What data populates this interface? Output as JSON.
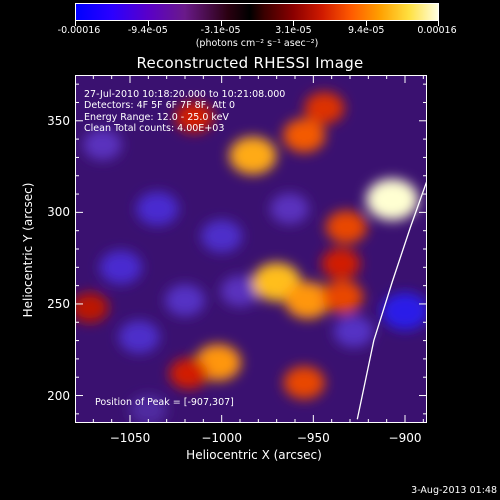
{
  "colorbar": {
    "tick_labels": [
      "-0.00016",
      "-9.4e-05",
      "-3.1e-05",
      "3.1e-05",
      "9.4e-05",
      "0.00016"
    ],
    "units": "(photons cm⁻² s⁻¹ asec⁻²)",
    "range": [
      -0.00016,
      0.00016
    ]
  },
  "plot": {
    "title": "Reconstructed RHESSI Image",
    "xlabel": "Heliocentric X (arcsec)",
    "ylabel": "Heliocentric Y (arcsec)",
    "x_ticks": [
      "−1050",
      "−1000",
      "−950",
      "−900"
    ],
    "y_ticks": [
      "350",
      "300",
      "250",
      "200"
    ],
    "info_lines": [
      "27-Jul-2010 10:18:20.000 to 10:21:08.000",
      "Detectors: 4F 5F 6F 7F 8F, Att 0",
      "Energy Range: 12.0 - 25.0 keV",
      "Clean    Total counts: 4.00E+03"
    ],
    "peak_text": "Position of Peak = [-907,307]",
    "colors": {
      "limb_line": "#ffffff",
      "axes": "#ffffff",
      "background": "#000000"
    }
  },
  "chart_data": {
    "type": "heatmap",
    "title": "Reconstructed RHESSI Image",
    "xlabel": "Heliocentric X (arcsec)",
    "ylabel": "Heliocentric Y (arcsec)",
    "xlim": [
      -1080,
      -888
    ],
    "ylim": [
      185,
      375
    ],
    "colorbar_range": [
      -0.00016,
      0.00016
    ],
    "peak_position": [
      -907,
      307
    ],
    "limb_curve": {
      "x": [
        -926,
        -917,
        -907,
        -897,
        -887
      ],
      "y": [
        187,
        230,
        262,
        292,
        320
      ]
    },
    "bright_regions": [
      {
        "x": -1015,
        "y": 352,
        "level": 0.45
      },
      {
        "x": -983,
        "y": 331,
        "level": 0.8
      },
      {
        "x": -955,
        "y": 342,
        "level": 0.6
      },
      {
        "x": -944,
        "y": 357,
        "level": 0.5
      },
      {
        "x": -932,
        "y": 292,
        "level": 0.55
      },
      {
        "x": -935,
        "y": 272,
        "level": 0.45
      },
      {
        "x": -970,
        "y": 262,
        "level": 0.85
      },
      {
        "x": -953,
        "y": 252,
        "level": 0.75
      },
      {
        "x": -934,
        "y": 254,
        "level": 0.55
      },
      {
        "x": -907,
        "y": 307,
        "level": 1.0
      },
      {
        "x": -1002,
        "y": 218,
        "level": 0.75
      },
      {
        "x": -1018,
        "y": 212,
        "level": 0.45
      },
      {
        "x": -955,
        "y": 207,
        "level": 0.55
      },
      {
        "x": -1072,
        "y": 248,
        "level": 0.4
      }
    ],
    "dark_regions": [
      {
        "x": -1035,
        "y": 302,
        "level": -0.6
      },
      {
        "x": -1055,
        "y": 270,
        "level": -0.6
      },
      {
        "x": -1000,
        "y": 287,
        "level": -0.55
      },
      {
        "x": -1045,
        "y": 232,
        "level": -0.55
      },
      {
        "x": -1020,
        "y": 252,
        "level": -0.5
      },
      {
        "x": -990,
        "y": 257,
        "level": -0.45
      },
      {
        "x": -900,
        "y": 246,
        "level": -0.8
      },
      {
        "x": -963,
        "y": 302,
        "level": -0.45
      },
      {
        "x": -1065,
        "y": 337,
        "level": -0.45
      },
      {
        "x": -928,
        "y": 235,
        "level": -0.5
      },
      {
        "x": -1040,
        "y": 192,
        "level": -0.4
      }
    ]
  },
  "footer": {
    "datestamp": "3-Aug-2013 01:48"
  }
}
